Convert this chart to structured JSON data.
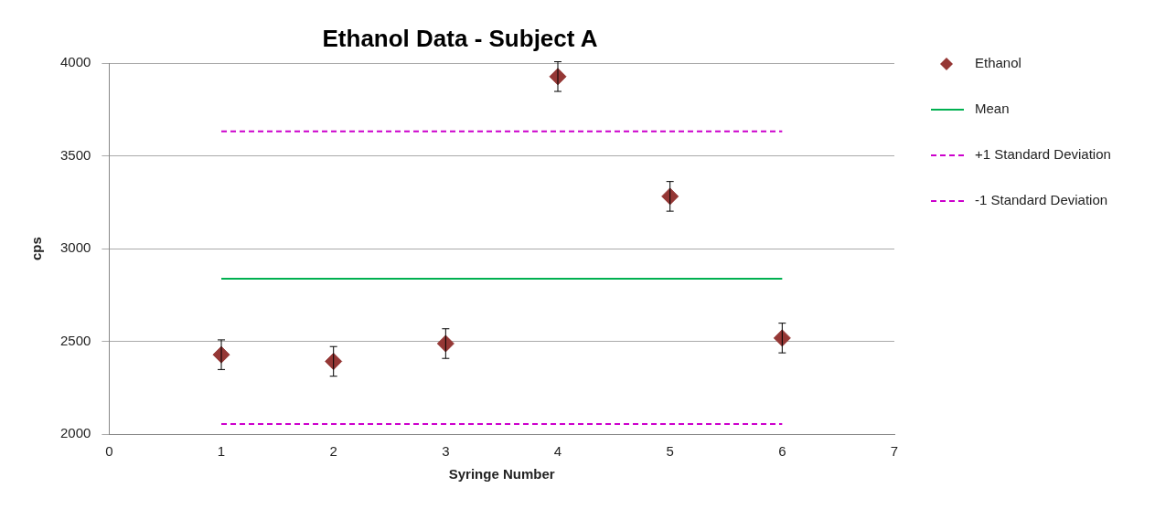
{
  "chart_data": {
    "type": "scatter",
    "title": "Ethanol Data - Subject A",
    "xlabel": "Syringe Number",
    "ylabel": "cps",
    "xlim": [
      0,
      7
    ],
    "xticks": [
      0,
      1,
      2,
      3,
      4,
      5,
      6,
      7
    ],
    "ylim": [
      2000,
      4000
    ],
    "yticks": [
      2000,
      2500,
      3000,
      3500,
      4000
    ],
    "grid": "y",
    "legend": "right",
    "series": [
      {
        "name": "Ethanol",
        "type": "scatter",
        "marker": "diamond",
        "color": "#953735",
        "x": [
          1,
          2,
          3,
          4,
          5,
          6
        ],
        "values": [
          2428,
          2392,
          2488,
          3928,
          3282,
          2518
        ],
        "errors": [
          80,
          80,
          80,
          80,
          80,
          80
        ]
      },
      {
        "name": "Mean",
        "type": "line",
        "line_style": "solid",
        "color": "#00b050",
        "x": [
          1,
          6
        ],
        "values": [
          2838,
          2838
        ]
      },
      {
        "name": "+1 Standard Deviation",
        "type": "line",
        "line_style": "dashed",
        "color": "#cc00cc",
        "x": [
          1,
          6
        ],
        "values": [
          3632,
          3632
        ]
      },
      {
        "name": "-1 Standard Deviation",
        "type": "line",
        "line_style": "dashed",
        "color": "#cc00cc",
        "x": [
          1,
          6
        ],
        "values": [
          2054,
          2054
        ]
      }
    ]
  }
}
